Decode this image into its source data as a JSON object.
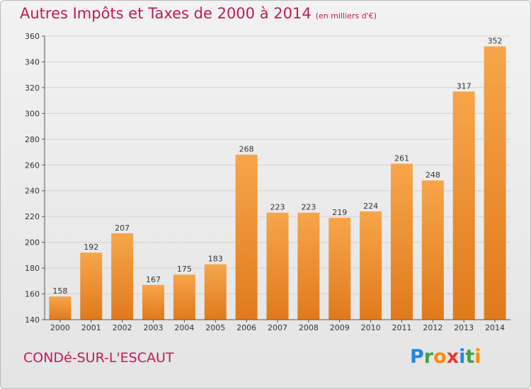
{
  "header": {
    "title": "Autres Impôts et Taxes de 2000 à 2014",
    "subtitle": "(en milliers d'€)"
  },
  "footer": {
    "city": "CONDé-SUR-L'ESCAUT",
    "logo": [
      "P",
      "r",
      "o",
      "x",
      "i",
      "t",
      "i"
    ]
  },
  "colors": {
    "accent": "#c2185b",
    "bar_top": "#f7a54a",
    "bar_bottom": "#e07a1c"
  },
  "chart_data": {
    "type": "bar",
    "title": "Autres Impôts et Taxes de 2000 à 2014",
    "subtitle": "(en milliers d'€)",
    "categories": [
      "2000",
      "2001",
      "2002",
      "2003",
      "2004",
      "2005",
      "2006",
      "2007",
      "2008",
      "2009",
      "2010",
      "2011",
      "2012",
      "2013",
      "2014"
    ],
    "values": [
      158,
      192,
      207,
      167,
      175,
      183,
      268,
      223,
      223,
      219,
      224,
      261,
      248,
      317,
      352
    ],
    "ylim": [
      140,
      360
    ],
    "yticks": [
      140,
      160,
      180,
      200,
      220,
      240,
      260,
      280,
      300,
      320,
      340,
      360
    ],
    "grid": true,
    "xlabel": "",
    "ylabel": ""
  }
}
